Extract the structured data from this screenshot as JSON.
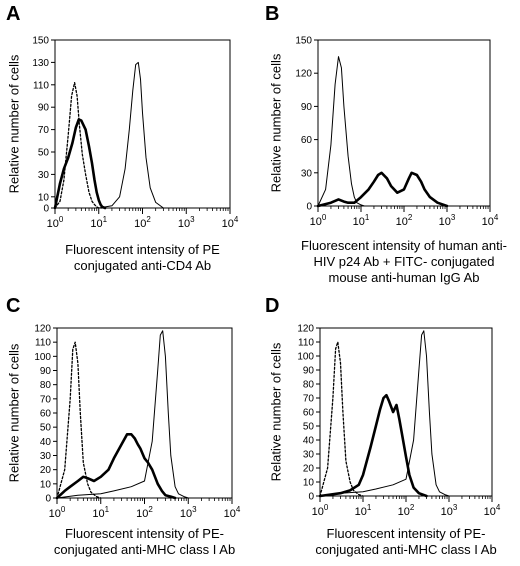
{
  "chart_data": [
    {
      "panel": "A",
      "type": "line",
      "xscale": "log",
      "xlim": [
        1,
        10000
      ],
      "ylim": [
        0,
        150
      ],
      "yticks": [
        0,
        10,
        30,
        50,
        70,
        90,
        110,
        130,
        150
      ],
      "ylabel": "Relative number of cells",
      "xlabel_lines": [
        "Fluorescent intensity of PE",
        "conjugated anti-CD4 Ab"
      ],
      "series": [
        {
          "style": "dotted",
          "x": [
            1,
            1.3,
            1.6,
            2,
            2.4,
            2.8,
            3.2,
            3.6,
            4.2,
            5,
            6,
            7,
            8,
            9,
            10,
            12
          ],
          "y": [
            0,
            6,
            25,
            65,
            100,
            112,
            100,
            75,
            48,
            30,
            14,
            6,
            3,
            1,
            0,
            0
          ]
        },
        {
          "style": "thick",
          "x": [
            1,
            1.3,
            1.6,
            2,
            2.5,
            3,
            3.5,
            4,
            5,
            6,
            7,
            8,
            9,
            10,
            11,
            12,
            14
          ],
          "y": [
            0,
            22,
            35,
            45,
            58,
            72,
            79,
            78,
            70,
            55,
            40,
            25,
            14,
            7,
            3,
            1,
            0
          ]
        },
        {
          "style": "thin",
          "x": [
            10,
            20,
            30,
            40,
            50,
            60,
            70,
            80,
            90,
            100,
            120,
            150,
            200,
            300
          ],
          "y": [
            0,
            2,
            10,
            35,
            70,
            105,
            128,
            130,
            115,
            85,
            45,
            18,
            5,
            0
          ]
        }
      ]
    },
    {
      "panel": "B",
      "type": "line",
      "xscale": "log",
      "xlim": [
        1,
        10000
      ],
      "ylim": [
        0,
        150
      ],
      "yticks": [
        0,
        30,
        60,
        90,
        120,
        150
      ],
      "ylabel": "Relative number of cells",
      "xlabel_lines": [
        "Fluorescent intensity of human anti-",
        "HIV p24 Ab + FITC- conjugated",
        "mouse anti-human IgG Ab"
      ],
      "series": [
        {
          "style": "thin",
          "x": [
            1,
            1.5,
            2,
            2.5,
            3,
            3.5,
            4,
            5,
            6,
            7,
            8,
            10,
            12,
            15
          ],
          "y": [
            0,
            15,
            55,
            110,
            135,
            125,
            90,
            45,
            20,
            8,
            3,
            1,
            0,
            0
          ]
        },
        {
          "style": "thick",
          "x": [
            1,
            2,
            3,
            4,
            5,
            7,
            10,
            15,
            20,
            25,
            30,
            40,
            50,
            70,
            100,
            130,
            150,
            200,
            250,
            300,
            400,
            600,
            1000
          ],
          "y": [
            0,
            3,
            6,
            4,
            3,
            3,
            8,
            15,
            22,
            28,
            30,
            25,
            18,
            12,
            15,
            25,
            30,
            28,
            22,
            15,
            8,
            3,
            0
          ]
        }
      ]
    },
    {
      "panel": "C",
      "type": "line",
      "xscale": "log",
      "xlim": [
        1,
        10000
      ],
      "ylim": [
        0,
        120
      ],
      "yticks": [
        0,
        10,
        20,
        30,
        40,
        50,
        60,
        70,
        80,
        90,
        100,
        110,
        120
      ],
      "ylabel": "Relative number of cells",
      "xlabel_lines": [
        "Fluorescent intensity of PE-",
        "conjugated anti-MHC class I Ab"
      ],
      "series": [
        {
          "style": "dotted",
          "x": [
            1,
            1.5,
            2,
            2.3,
            2.6,
            3,
            3.4,
            4,
            5,
            6,
            8,
            10
          ],
          "y": [
            0,
            20,
            70,
            105,
            110,
            95,
            60,
            25,
            10,
            4,
            1,
            0
          ]
        },
        {
          "style": "thick",
          "x": [
            1,
            1.5,
            2,
            3,
            4,
            5,
            7,
            10,
            15,
            20,
            30,
            40,
            50,
            60,
            70,
            80,
            100,
            120,
            150,
            200,
            250,
            300,
            400,
            500
          ],
          "y": [
            0,
            5,
            8,
            12,
            15,
            14,
            12,
            15,
            20,
            28,
            38,
            45,
            45,
            42,
            38,
            35,
            28,
            25,
            20,
            10,
            5,
            2,
            1,
            0
          ]
        },
        {
          "style": "thin",
          "x": [
            1,
            3,
            10,
            20,
            50,
            100,
            150,
            200,
            230,
            260,
            300,
            350,
            400,
            500,
            600,
            800,
            1000
          ],
          "y": [
            0,
            2,
            3,
            5,
            8,
            12,
            40,
            90,
            115,
            118,
            100,
            60,
            30,
            8,
            3,
            1,
            0
          ]
        }
      ]
    },
    {
      "panel": "D",
      "type": "line",
      "xscale": "log",
      "xlim": [
        1,
        10000
      ],
      "ylim": [
        0,
        120
      ],
      "yticks": [
        0,
        10,
        20,
        30,
        40,
        50,
        60,
        70,
        80,
        90,
        100,
        110,
        120
      ],
      "ylabel": "Relative number of cells",
      "xlabel_lines": [
        "Fluorescent intensity of PE-",
        "conjugated anti-MHC class I Ab"
      ],
      "series": [
        {
          "style": "dotted",
          "x": [
            1,
            1.5,
            2,
            2.3,
            2.6,
            3,
            3.4,
            4,
            5,
            6,
            8,
            10
          ],
          "y": [
            0,
            20,
            70,
            105,
            110,
            95,
            60,
            25,
            10,
            4,
            1,
            0
          ]
        },
        {
          "style": "thick",
          "x": [
            1,
            3,
            5,
            8,
            10,
            15,
            20,
            25,
            30,
            35,
            40,
            50,
            60,
            70,
            80,
            100,
            120,
            150,
            200,
            300
          ],
          "y": [
            0,
            2,
            4,
            8,
            15,
            35,
            50,
            62,
            70,
            72,
            68,
            60,
            65,
            55,
            45,
            28,
            15,
            6,
            2,
            0
          ]
        },
        {
          "style": "thin",
          "x": [
            1,
            3,
            10,
            20,
            50,
            100,
            150,
            200,
            230,
            260,
            300,
            350,
            400,
            500,
            600,
            800,
            1000
          ],
          "y": [
            0,
            2,
            3,
            5,
            8,
            12,
            40,
            90,
            115,
            118,
            100,
            60,
            30,
            8,
            3,
            1,
            0
          ]
        }
      ]
    }
  ]
}
